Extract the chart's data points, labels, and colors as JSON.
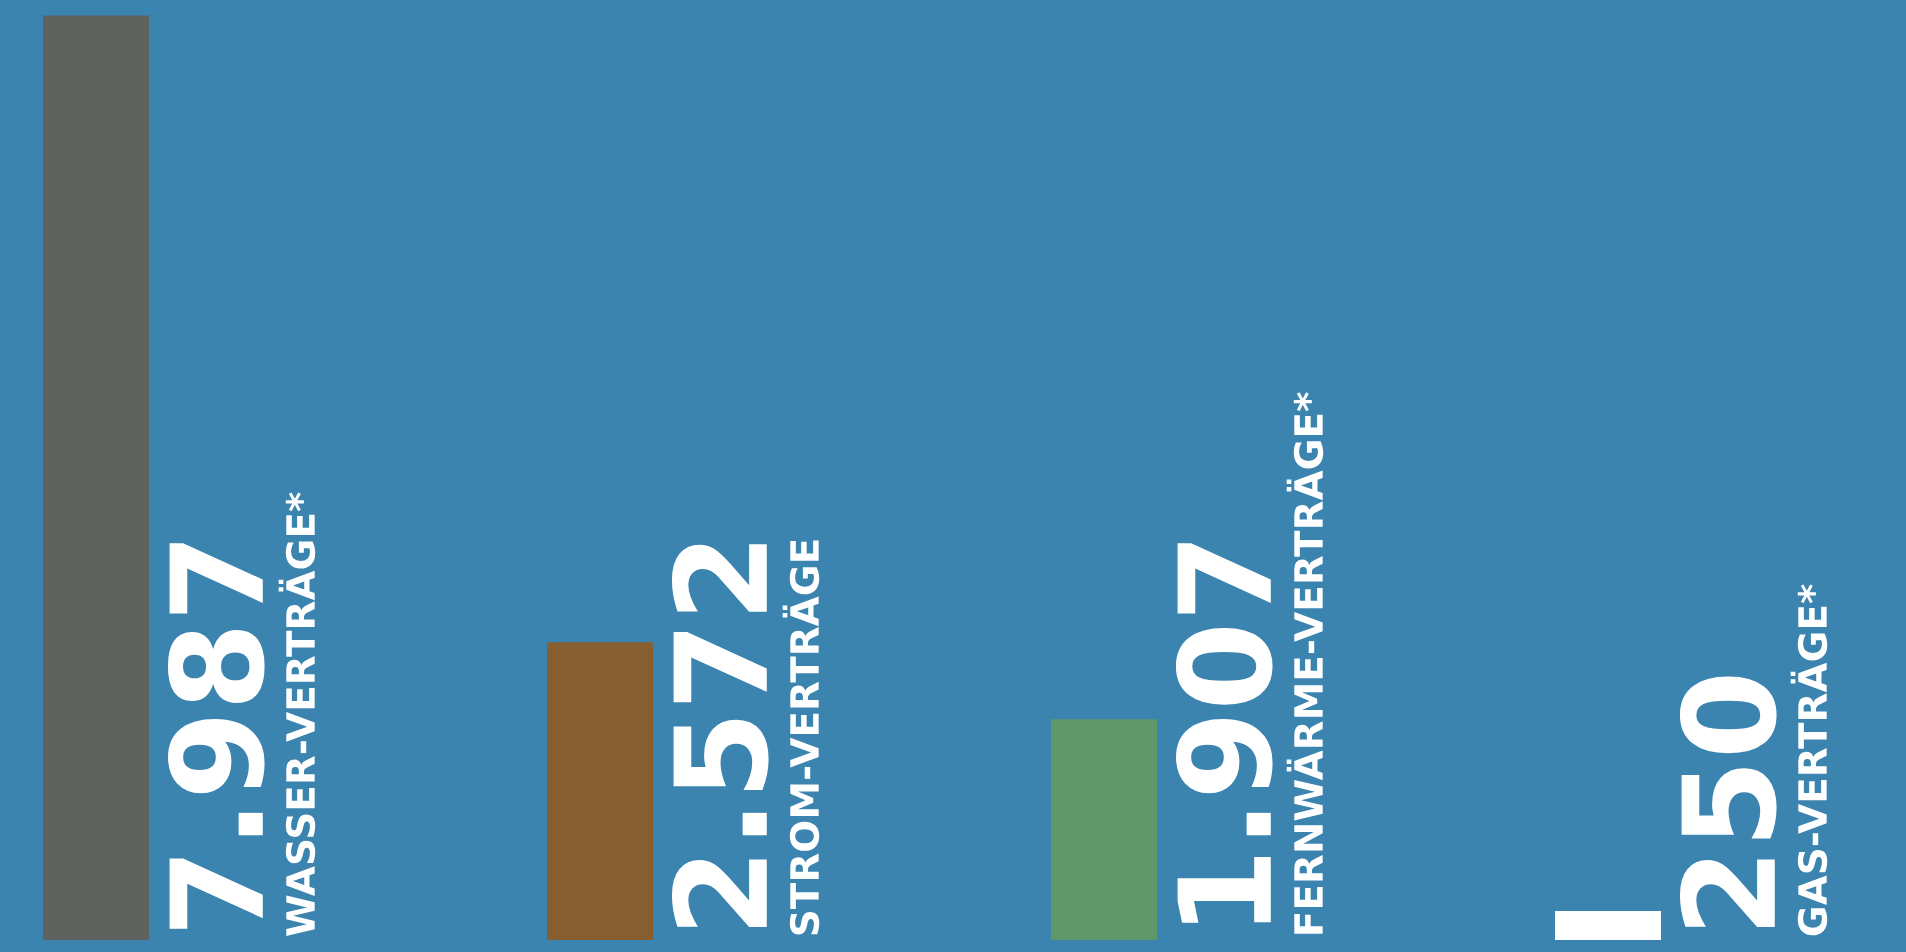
{
  "chart_data": {
    "type": "bar",
    "categories": [
      "WASSER-VERTRÄGE*",
      "STROM-VERTRÄGE",
      "FERNWÄRME-VERTRÄGE*",
      "GAS-VERTRÄGE*"
    ],
    "values": [
      7987,
      2572,
      1907,
      250
    ],
    "value_labels": [
      "7.987",
      "2.572",
      "1.907",
      "250"
    ],
    "colors": [
      "#5f625f",
      "#875e2f",
      "#5f976a",
      "#ffffff"
    ],
    "tick_labels": false
  }
}
